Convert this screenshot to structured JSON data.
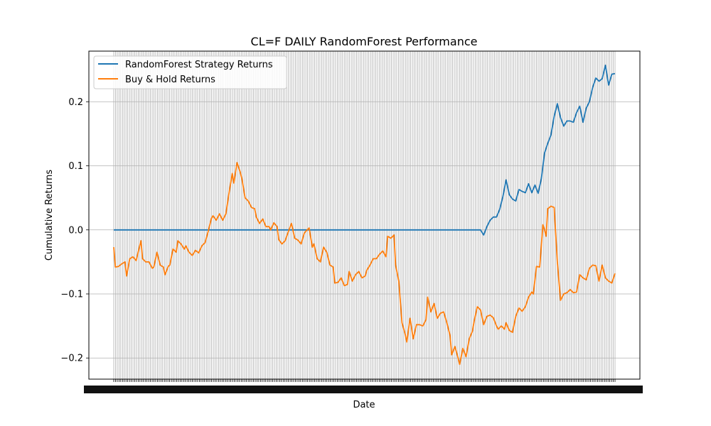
{
  "chart_data": {
    "type": "line",
    "title": "CL=F DAILY RandomForest Performance",
    "xlabel": "Date",
    "ylabel": "Cumulative Returns",
    "ylim": [
      -0.233,
      0.279
    ],
    "yticks": [
      -0.2,
      -0.1,
      0.0,
      0.1,
      0.2
    ],
    "ytick_labels": [
      "−0.2",
      "−0.1",
      "0.0",
      "0.1",
      "0.2"
    ],
    "grid": true,
    "legend_position": "upper left",
    "x_count": 288,
    "x_tick_note": "dense overlapping date labels (unreadable)",
    "series": [
      {
        "name": "RandomForest Strategy Returns",
        "color": "#1f77b4",
        "points": [
          [
            0,
            0
          ],
          [
            229,
            0
          ],
          [
            231,
            -0.008
          ],
          [
            233,
            0.005
          ],
          [
            235,
            0.015
          ],
          [
            237,
            0.02
          ],
          [
            239,
            0.02
          ],
          [
            241,
            0.032
          ],
          [
            243,
            0.052
          ],
          [
            245,
            0.078
          ],
          [
            247,
            0.055
          ],
          [
            249,
            0.048
          ],
          [
            251,
            0.045
          ],
          [
            253,
            0.063
          ],
          [
            255,
            0.06
          ],
          [
            257,
            0.058
          ],
          [
            259,
            0.072
          ],
          [
            261,
            0.058
          ],
          [
            263,
            0.07
          ],
          [
            265,
            0.057
          ],
          [
            267,
            0.08
          ],
          [
            269,
            0.12
          ],
          [
            271,
            0.135
          ],
          [
            273,
            0.148
          ],
          [
            275,
            0.177
          ],
          [
            277,
            0.197
          ],
          [
            279,
            0.175
          ],
          [
            281,
            0.162
          ],
          [
            283,
            0.17
          ],
          [
            285,
            0.17
          ],
          [
            287,
            0.168
          ],
          [
            289,
            0.183
          ],
          [
            291,
            0.193
          ],
          [
            293,
            0.168
          ],
          [
            295,
            0.19
          ],
          [
            297,
            0.2
          ],
          [
            299,
            0.222
          ],
          [
            301,
            0.237
          ],
          [
            303,
            0.232
          ],
          [
            305,
            0.236
          ],
          [
            307,
            0.257
          ],
          [
            309,
            0.226
          ],
          [
            311,
            0.243
          ],
          [
            313,
            0.244
          ]
        ]
      },
      {
        "name": "Buy & Hold Returns",
        "color": "#ff7f0e",
        "points": [
          [
            0,
            -0.027
          ],
          [
            1,
            -0.058
          ],
          [
            3,
            -0.057
          ],
          [
            5,
            -0.053
          ],
          [
            7,
            -0.05
          ],
          [
            8,
            -0.072
          ],
          [
            10,
            -0.045
          ],
          [
            12,
            -0.042
          ],
          [
            14,
            -0.048
          ],
          [
            16,
            -0.027
          ],
          [
            17,
            -0.017
          ],
          [
            18,
            -0.045
          ],
          [
            20,
            -0.05
          ],
          [
            22,
            -0.05
          ],
          [
            24,
            -0.06
          ],
          [
            25,
            -0.058
          ],
          [
            27,
            -0.035
          ],
          [
            29,
            -0.055
          ],
          [
            31,
            -0.058
          ],
          [
            32,
            -0.07
          ],
          [
            34,
            -0.057
          ],
          [
            35,
            -0.055
          ],
          [
            37,
            -0.03
          ],
          [
            39,
            -0.035
          ],
          [
            40,
            -0.017
          ],
          [
            42,
            -0.022
          ],
          [
            44,
            -0.03
          ],
          [
            45,
            -0.025
          ],
          [
            47,
            -0.035
          ],
          [
            49,
            -0.04
          ],
          [
            51,
            -0.032
          ],
          [
            53,
            -0.036
          ],
          [
            55,
            -0.025
          ],
          [
            57,
            -0.02
          ],
          [
            59,
            -0.002
          ],
          [
            61,
            0.018
          ],
          [
            62,
            0.022
          ],
          [
            64,
            0.015
          ],
          [
            66,
            0.025
          ],
          [
            68,
            0.015
          ],
          [
            70,
            0.025
          ],
          [
            72,
            0.058
          ],
          [
            74,
            0.088
          ],
          [
            75,
            0.073
          ],
          [
            77,
            0.105
          ],
          [
            79,
            0.09
          ],
          [
            80,
            0.08
          ],
          [
            82,
            0.05
          ],
          [
            84,
            0.045
          ],
          [
            86,
            0.035
          ],
          [
            88,
            0.033
          ],
          [
            89,
            0.02
          ],
          [
            91,
            0.01
          ],
          [
            93,
            0.017
          ],
          [
            95,
            0.005
          ],
          [
            97,
            0.005
          ],
          [
            98,
            0.0
          ],
          [
            100,
            0.011
          ],
          [
            102,
            0.005
          ],
          [
            103,
            -0.015
          ],
          [
            105,
            -0.022
          ],
          [
            107,
            -0.017
          ],
          [
            109,
            -0.003
          ],
          [
            111,
            0.01
          ],
          [
            113,
            -0.013
          ],
          [
            115,
            -0.016
          ],
          [
            117,
            -0.022
          ],
          [
            119,
            -0.005
          ],
          [
            120,
            -0.002
          ],
          [
            122,
            0.003
          ],
          [
            124,
            -0.027
          ],
          [
            125,
            -0.022
          ],
          [
            127,
            -0.045
          ],
          [
            129,
            -0.05
          ],
          [
            131,
            -0.027
          ],
          [
            133,
            -0.035
          ],
          [
            135,
            -0.055
          ],
          [
            137,
            -0.058
          ],
          [
            138,
            -0.083
          ],
          [
            140,
            -0.082
          ],
          [
            142,
            -0.075
          ],
          [
            144,
            -0.087
          ],
          [
            146,
            -0.085
          ],
          [
            147,
            -0.065
          ],
          [
            149,
            -0.08
          ],
          [
            151,
            -0.07
          ],
          [
            153,
            -0.065
          ],
          [
            155,
            -0.075
          ],
          [
            157,
            -0.072
          ],
          [
            158,
            -0.063
          ],
          [
            160,
            -0.055
          ],
          [
            162,
            -0.045
          ],
          [
            164,
            -0.045
          ],
          [
            166,
            -0.038
          ],
          [
            168,
            -0.033
          ],
          [
            170,
            -0.042
          ],
          [
            171,
            -0.01
          ],
          [
            173,
            -0.013
          ],
          [
            175,
            -0.008
          ],
          [
            176,
            -0.055
          ],
          [
            178,
            -0.08
          ],
          [
            180,
            -0.145
          ],
          [
            182,
            -0.163
          ],
          [
            183,
            -0.175
          ],
          [
            185,
            -0.138
          ],
          [
            187,
            -0.17
          ],
          [
            189,
            -0.148
          ],
          [
            191,
            -0.148
          ],
          [
            193,
            -0.15
          ],
          [
            195,
            -0.14
          ],
          [
            196,
            -0.105
          ],
          [
            198,
            -0.128
          ],
          [
            200,
            -0.115
          ],
          [
            202,
            -0.138
          ],
          [
            204,
            -0.13
          ],
          [
            206,
            -0.128
          ],
          [
            208,
            -0.145
          ],
          [
            210,
            -0.165
          ],
          [
            211,
            -0.195
          ],
          [
            213,
            -0.182
          ],
          [
            215,
            -0.2
          ],
          [
            216,
            -0.21
          ],
          [
            218,
            -0.185
          ],
          [
            220,
            -0.198
          ],
          [
            222,
            -0.17
          ],
          [
            224,
            -0.158
          ],
          [
            225,
            -0.143
          ],
          [
            227,
            -0.12
          ],
          [
            229,
            -0.125
          ],
          [
            231,
            -0.148
          ],
          [
            233,
            -0.135
          ],
          [
            235,
            -0.133
          ],
          [
            237,
            -0.137
          ],
          [
            239,
            -0.15
          ],
          [
            240,
            -0.155
          ],
          [
            242,
            -0.15
          ],
          [
            244,
            -0.155
          ],
          [
            245,
            -0.145
          ],
          [
            247,
            -0.157
          ],
          [
            249,
            -0.16
          ],
          [
            251,
            -0.135
          ],
          [
            253,
            -0.122
          ],
          [
            255,
            -0.127
          ],
          [
            257,
            -0.12
          ],
          [
            259,
            -0.105
          ],
          [
            261,
            -0.097
          ],
          [
            262,
            -0.1
          ],
          [
            264,
            -0.057
          ],
          [
            266,
            -0.058
          ],
          [
            268,
            0.008
          ],
          [
            269,
            0.0
          ],
          [
            270,
            -0.01
          ],
          [
            271,
            0.033
          ],
          [
            273,
            0.037
          ],
          [
            275,
            0.035
          ],
          [
            277,
            -0.05
          ],
          [
            279,
            -0.11
          ],
          [
            281,
            -0.1
          ],
          [
            283,
            -0.098
          ],
          [
            285,
            -0.093
          ],
          [
            287,
            -0.098
          ],
          [
            289,
            -0.097
          ],
          [
            291,
            -0.07
          ],
          [
            293,
            -0.075
          ],
          [
            295,
            -0.078
          ],
          [
            297,
            -0.06
          ],
          [
            299,
            -0.055
          ],
          [
            301,
            -0.056
          ],
          [
            303,
            -0.08
          ],
          [
            305,
            -0.055
          ],
          [
            307,
            -0.075
          ],
          [
            309,
            -0.08
          ],
          [
            311,
            -0.083
          ],
          [
            313,
            -0.068
          ]
        ]
      }
    ]
  }
}
